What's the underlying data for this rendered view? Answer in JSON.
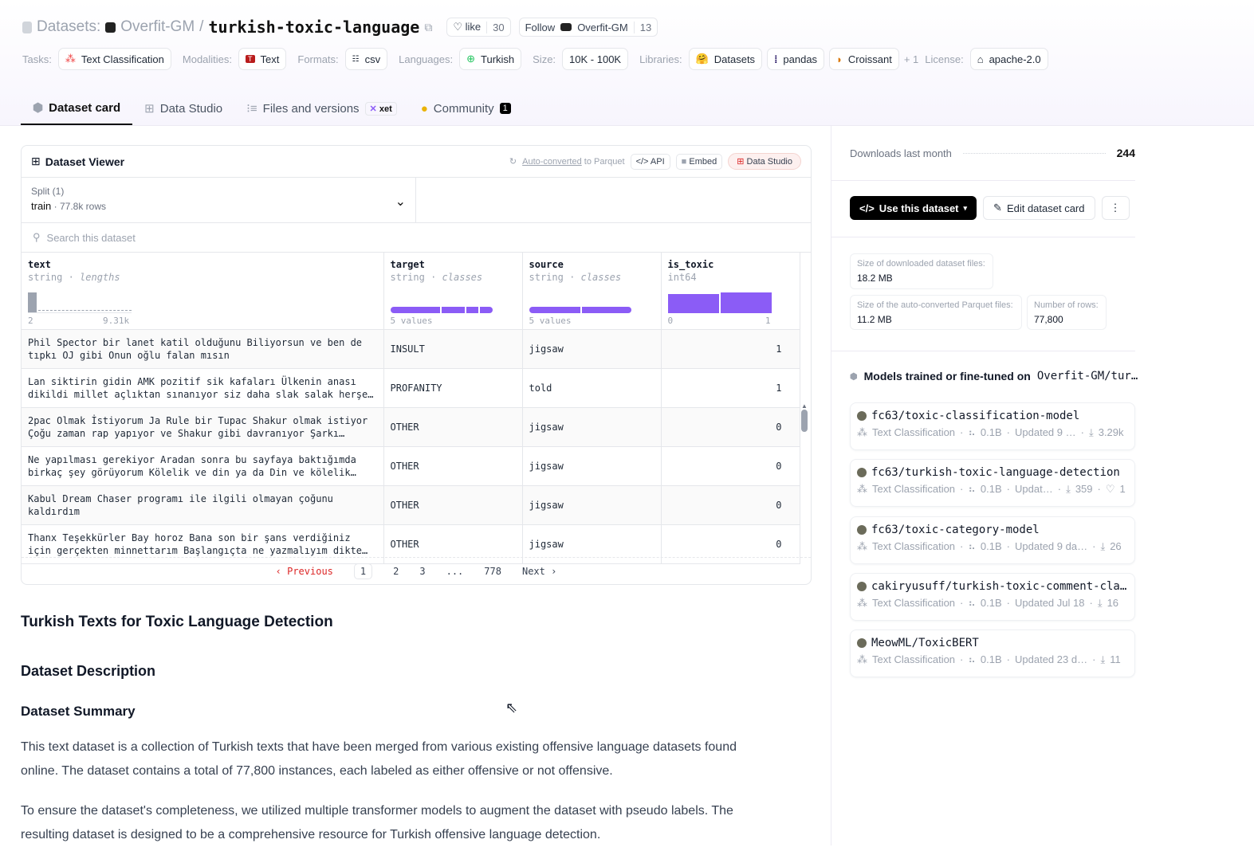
{
  "header": {
    "section": "Datasets:",
    "owner": "Overfit-GM",
    "separator": "/",
    "name": "turkish-toxic-language",
    "like_label": "like",
    "like_count": "30",
    "follow_label": "Follow",
    "follow_org": "Overfit-GM",
    "follow_count": "13"
  },
  "tags": [
    {
      "label": "Tasks:",
      "value": "Text Classification",
      "icon": "text-classification-icon"
    },
    {
      "label": "Modalities:",
      "value": "Text",
      "icon": "text-modality-icon"
    },
    {
      "label": "Formats:",
      "value": "csv",
      "icon": "csv-icon"
    },
    {
      "label": "Languages:",
      "value": "Turkish",
      "icon": "globe-icon"
    },
    {
      "label": "Size:",
      "value": "10K - 100K"
    },
    {
      "label": "Libraries:",
      "value": "Datasets",
      "icon": "hf-icon"
    },
    {
      "label": "",
      "value": "pandas",
      "icon": "pandas-icon"
    },
    {
      "label": "",
      "value": "Croissant",
      "icon": "croissant-icon"
    }
  ],
  "more_libraries": "+ 1",
  "license": {
    "label": "License:",
    "value": "apache-2.0"
  },
  "tabs": [
    {
      "label": "Dataset card",
      "active": true
    },
    {
      "label": "Data Studio"
    },
    {
      "label": "Files and versions",
      "badge": "xet"
    },
    {
      "label": "Community",
      "count": "1"
    }
  ],
  "viewer": {
    "title": "Dataset Viewer",
    "auto_converted": "Auto-converted",
    "to_parquet": "to Parquet",
    "api": "API",
    "embed": "Embed",
    "data_studio": "Data Studio",
    "split_label": "Split (1)",
    "split_value": "train",
    "split_rows": "77.8k rows",
    "search_placeholder": "Search this dataset",
    "columns": [
      {
        "name": "text",
        "type": "string",
        "stat": "lengths",
        "min": "2",
        "max": "9.31k"
      },
      {
        "name": "target",
        "type": "string",
        "stat": "classes",
        "foot": "5 values"
      },
      {
        "name": "source",
        "type": "string",
        "stat": "classes",
        "foot": "5 values"
      },
      {
        "name": "is_toxic",
        "type": "int64",
        "min": "0",
        "max": "1"
      }
    ],
    "rows": [
      {
        "text": "Phil Spector bir lanet katil olduğunu Biliyorsun ve ben de tıpkı OJ gibi Onun oğlu falan mısın",
        "target": "INSULT",
        "source": "jigsaw",
        "is_toxic": "1"
      },
      {
        "text": "Lan siktirin gidin AMK pozitif sik kafaları Ülkenin anası dikildi millet açlıktan sınanıyor siz daha slak salak herşe…",
        "target": "PROFANITY",
        "source": "told",
        "is_toxic": "1"
      },
      {
        "text": "2pac Olmak İstiyorum Ja Rule bir Tupac Shakur olmak istiyor Çoğu zaman rap yapıyor ve Shakur gibi davranıyor Şarkı…",
        "target": "OTHER",
        "source": "jigsaw",
        "is_toxic": "0"
      },
      {
        "text": "Ne yapılması gerekiyor Aradan sonra bu sayfaya baktığımda birkaç şey görüyorum Kölelik ve din ya da Din ve kölelik…",
        "target": "OTHER",
        "source": "jigsaw",
        "is_toxic": "0"
      },
      {
        "text": "Kabul Dream Chaser programı ile ilgili olmayan çoğunu kaldırdım",
        "target": "OTHER",
        "source": "jigsaw",
        "is_toxic": "0"
      },
      {
        "text": "Thanx Teşekkürler Bay horoz Bana son bir şans verdiğiniz için gerçekten minnettarım Başlangıçta ne yazmalıyım dikte…",
        "target": "OTHER",
        "source": "jigsaw",
        "is_toxic": "0"
      }
    ],
    "pager": {
      "prev": "Previous",
      "pages": [
        "1",
        "2",
        "3",
        "...",
        "778"
      ],
      "next": "Next",
      "current": "1"
    }
  },
  "card": {
    "title": "Turkish Texts for Toxic Language Detection",
    "h_desc": "Dataset Description",
    "h_summary": "Dataset Summary",
    "p1": "This text dataset is a collection of Turkish texts that have been merged from various existing offensive language datasets found online. The dataset contains a total of 77,800 instances, each labeled as either offensive or not offensive.",
    "p2": "To ensure the dataset's completeness, we utilized multiple transformer models to augment the dataset with pseudo labels. The resulting dataset is designed to be a comprehensive resource for Turkish offensive language detection."
  },
  "sidebar": {
    "downloads_label": "Downloads last month",
    "downloads": "244",
    "use_button": "Use this dataset",
    "edit_button": "Edit dataset card",
    "size_files_label": "Size of downloaded dataset files:",
    "size_files": "18.2 MB",
    "size_parquet_label": "Size of the auto-converted Parquet files:",
    "size_parquet": "11.2 MB",
    "rows_label": "Number of rows:",
    "rows": "77,800",
    "models_heading": "Models trained or fine-tuned on",
    "models_target": "Overfit-GM/tur…",
    "models": [
      {
        "name": "fc63/toxic-classification-model",
        "task": "Text Classification",
        "params": "0.1B",
        "updated": "Updated 9 …",
        "downloads": "3.29k"
      },
      {
        "name": "fc63/turkish-toxic-language-detection",
        "task": "Text Classification",
        "params": "0.1B",
        "updated": "Updat…",
        "downloads": "359",
        "likes": "1"
      },
      {
        "name": "fc63/toxic-category-model",
        "task": "Text Classification",
        "params": "0.1B",
        "updated": "Updated 9 da…",
        "downloads": "26"
      },
      {
        "name": "cakiryusuff/turkish-toxic-comment-cla…",
        "task": "Text Classification",
        "params": "0.1B",
        "updated": "Updated Jul 18",
        "downloads": "16"
      },
      {
        "name": "MeowML/ToxicBERT",
        "task": "Text Classification",
        "params": "0.1B",
        "updated": "Updated 23 d…",
        "downloads": "11"
      }
    ]
  },
  "colors": {
    "accent": "#8b5cf6",
    "text_length_bar": "#9ca3af"
  }
}
